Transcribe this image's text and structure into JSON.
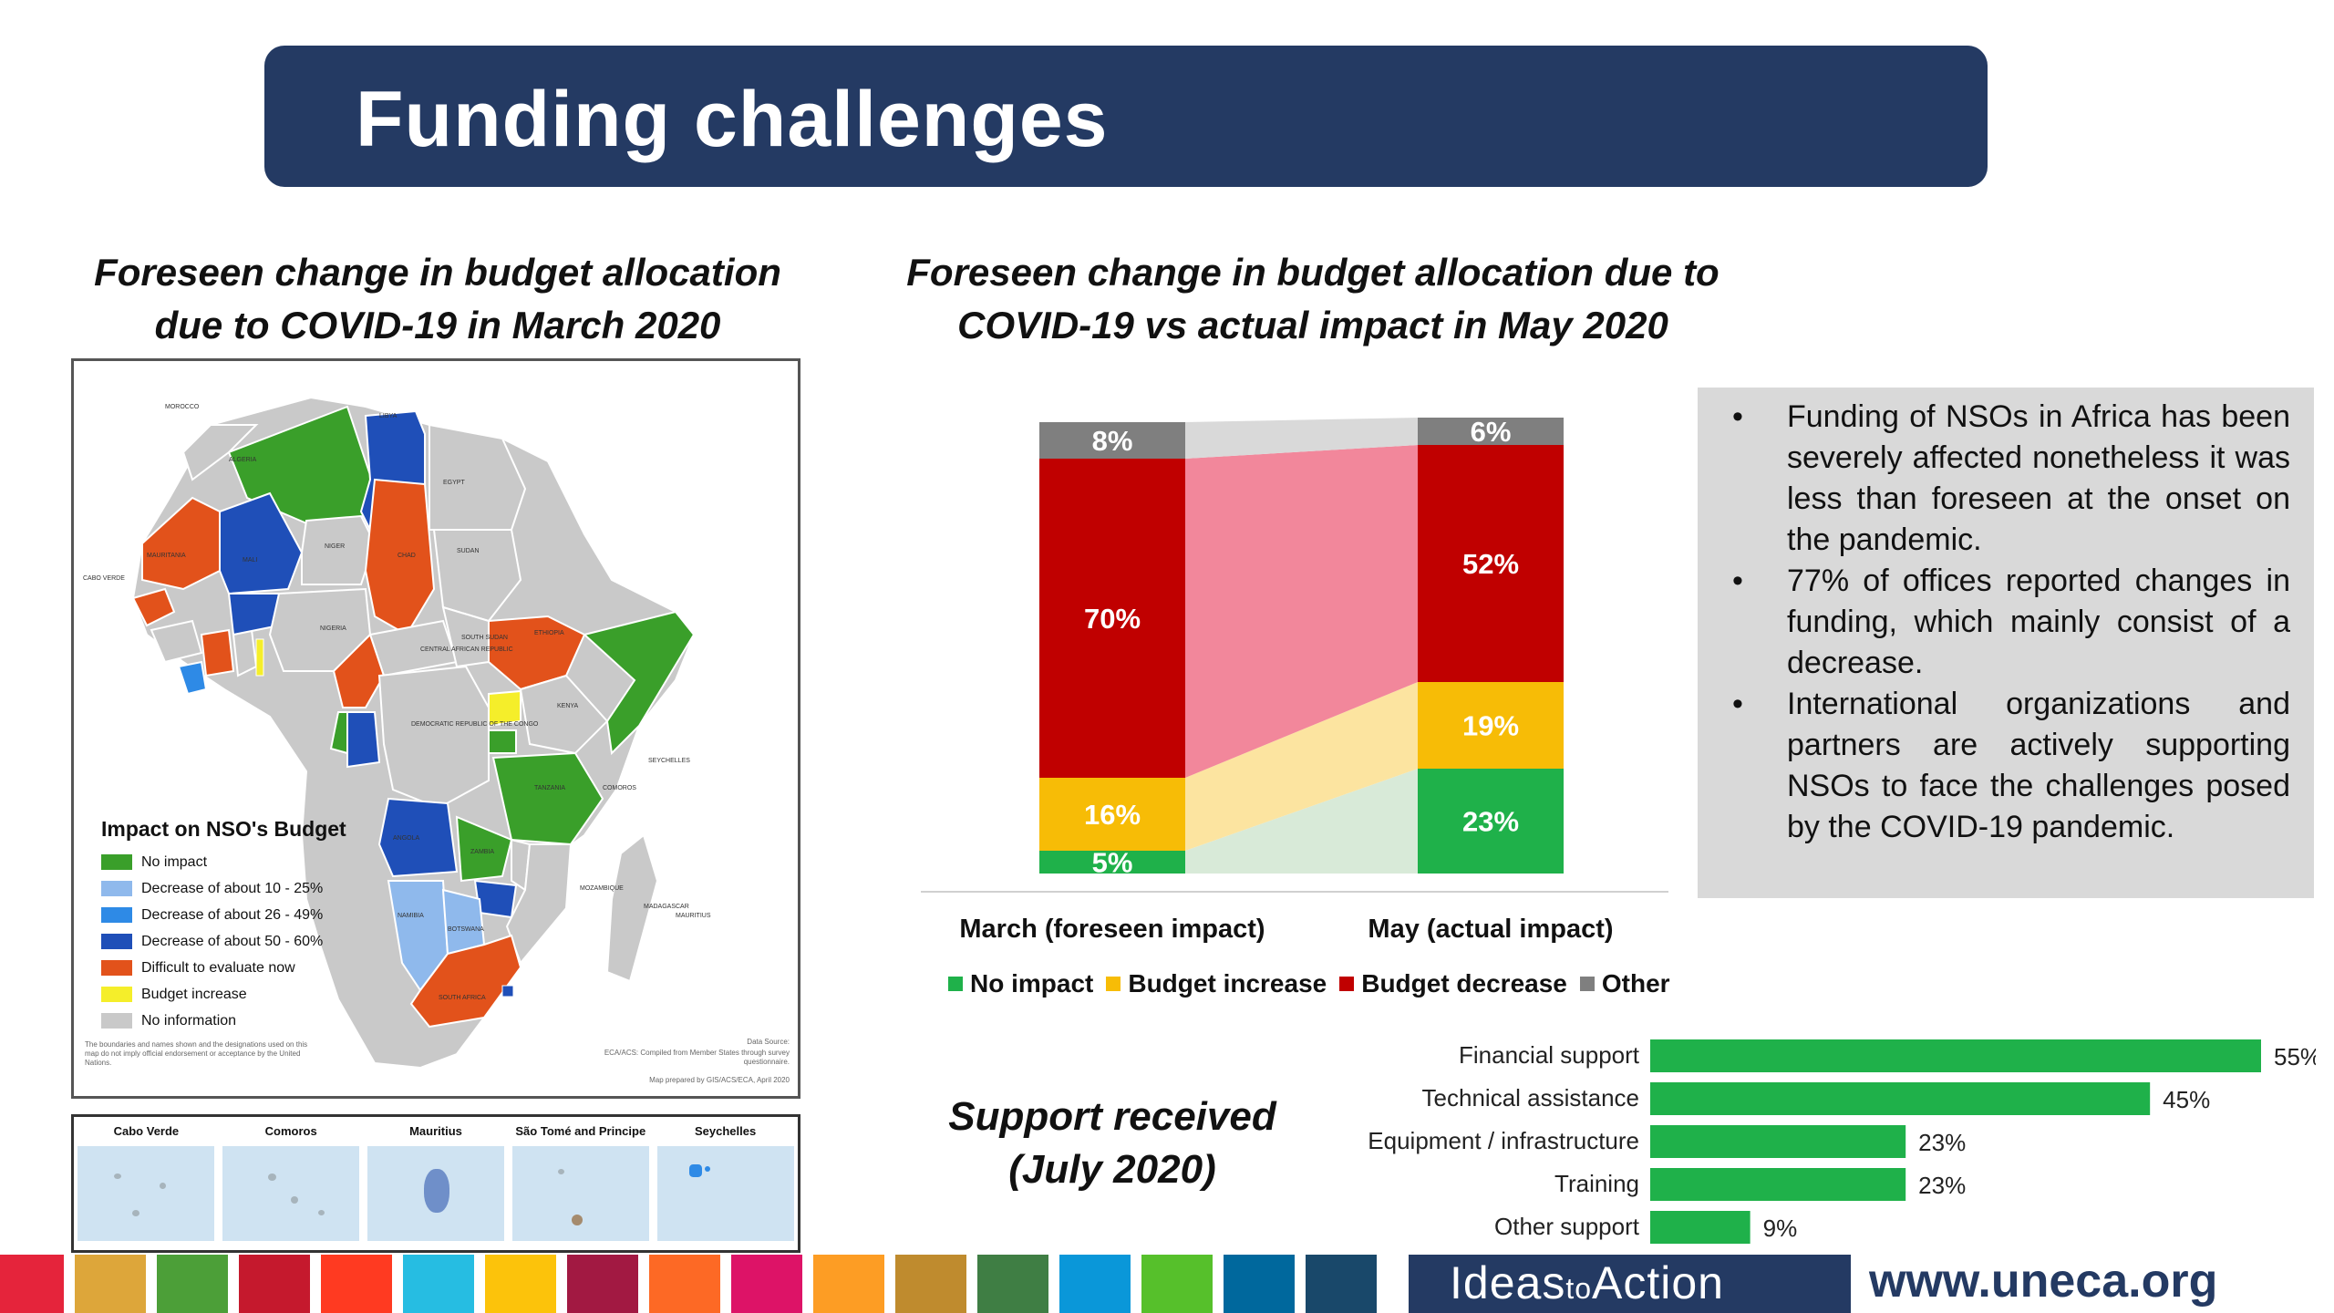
{
  "header": {
    "title": "Funding challenges"
  },
  "left_panel": {
    "subtitle": "Foreseen change in budget allocation due to COVID-19 in March 2020",
    "legend": {
      "title": "Impact on NSO's Budget",
      "items": [
        {
          "label": "No impact",
          "color": "#3a9f2a"
        },
        {
          "label": "Decrease of about 10 - 25%",
          "color": "#8fb9ec"
        },
        {
          "label": "Decrease of about 26 - 49%",
          "color": "#2e8ae6"
        },
        {
          "label": "Decrease of about 50 - 60%",
          "color": "#1f4fb8"
        },
        {
          "label": "Difficult to evaluate now",
          "color": "#e2521b"
        },
        {
          "label": "Budget increase",
          "color": "#f5ee2a"
        },
        {
          "label": "No information",
          "color": "#c9c9c9"
        }
      ]
    },
    "map_notes": {
      "disclaimer": "The boundaries and names shown and the designations used on this map do not imply official endorsement or acceptance by the United Nations.",
      "source_label": "Data Source:",
      "source": "ECA/ACS: Compiled from Member States through survey questionnaire.",
      "prepared": "Map prepared by GIS/ACS/ECA, April 2020"
    },
    "country_labels": [
      "MOROCCO",
      "ALGERIA",
      "LIBYA",
      "EGYPT",
      "MAURITANIA",
      "MALI",
      "NIGER",
      "CHAD",
      "SUDAN",
      "NIGERIA",
      "ETHIOPIA",
      "CENTRAL AFRICAN REPUBLIC",
      "SOUTH SUDAN",
      "KENYA",
      "DEMOCRATIC REPUBLIC OF THE CONGO",
      "TANZANIA",
      "ANGOLA",
      "ZAMBIA",
      "NAMIBIA",
      "BOTSWANA",
      "SOUTH AFRICA",
      "MADAGASCAR",
      "MOZAMBIQUE",
      "SEYCHELLES",
      "COMOROS",
      "MAURITIUS",
      "CABO VERDE"
    ],
    "islands": [
      {
        "name": "Cabo Verde"
      },
      {
        "name": "Comoros"
      },
      {
        "name": "Mauritius"
      },
      {
        "name": "São Tomé and Principe"
      },
      {
        "name": "Seychelles"
      }
    ]
  },
  "middle_panel": {
    "subtitle": "Foreseen change in budget allocation due to COVID-19 vs actual impact in May 2020",
    "legend_items": [
      "No impact",
      "Budget increase",
      "Budget decrease",
      "Other"
    ]
  },
  "bullets": [
    "Funding of NSOs in Africa has been severely affected nonetheless it was less than foreseen at the onset on the pandemic.",
    "77% of offices reported changes in funding, which mainly consist of a decrease.",
    "International organizations and partners are actively supporting NSOs to face the challenges posed by the COVID-19 pandemic."
  ],
  "support": {
    "title_line1": "Support received",
    "title_line2": "(July 2020)"
  },
  "footer": {
    "brand_prefix": "Ideas",
    "brand_mid": "to",
    "brand_suffix": "Action",
    "url": "www.uneca.org",
    "sdg_colors": [
      "#e5243b",
      "#dda63a",
      "#4c9f38",
      "#c5192d",
      "#ff3a21",
      "#26bde2",
      "#fcc30b",
      "#a21942",
      "#fd6925",
      "#dd1367",
      "#fd9d24",
      "#bf8b2e",
      "#3f7e44",
      "#0a97d9",
      "#56c02b",
      "#00689d",
      "#19486a"
    ]
  },
  "chart_data": [
    {
      "type": "bar",
      "stacked": true,
      "percent": true,
      "categories": [
        "March (foreseen impact)",
        "May (actual impact)"
      ],
      "series": [
        {
          "name": "No impact",
          "color": "#1fb14a",
          "values": [
            5,
            23
          ],
          "label_color": "#ffffff"
        },
        {
          "name": "Budget increase",
          "color": "#f7bc06",
          "values": [
            16,
            19
          ],
          "label_color": "#ffffff"
        },
        {
          "name": "Budget decrease",
          "color": "#c00000",
          "values": [
            70,
            52
          ],
          "label_color": "#ffffff"
        },
        {
          "name": "Other",
          "color": "#7f7f7f",
          "values": [
            8,
            6
          ],
          "label_color": "#ffffff"
        }
      ],
      "connector_colors": [
        "#d8ead8",
        "#fce4a0",
        "#f2879b",
        "#d9d9d9"
      ],
      "legend_position": "bottom"
    },
    {
      "type": "bar",
      "orientation": "horizontal",
      "categories": [
        "Financial support",
        "Technical assistance",
        "Equipment / infrastructure",
        "Training",
        "Other support"
      ],
      "values": [
        55,
        45,
        23,
        23,
        9
      ],
      "value_suffix": "%",
      "color": "#1fb14a",
      "xlim": [
        0,
        55
      ]
    }
  ]
}
